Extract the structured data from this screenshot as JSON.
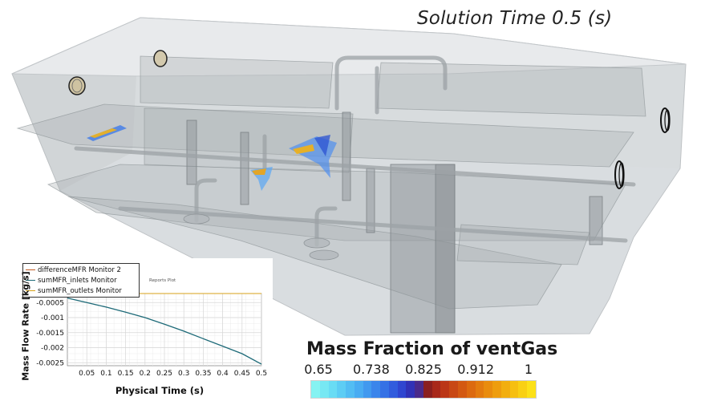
{
  "scene": {
    "solution_time_label": "Solution Time 0.5 (s)"
  },
  "colorbar": {
    "title": "Mass Fraction of ventGas",
    "ticks": [
      "0.65",
      "0.738",
      "0.825",
      "0.912",
      "1"
    ],
    "tick_values": [
      0.65,
      0.738,
      0.825,
      0.912,
      1.0
    ],
    "min": 0.65,
    "max": 1.0,
    "colors": [
      "#85f3f2",
      "#77e8f3",
      "#69dcf4",
      "#5dcdf4",
      "#52bdf3",
      "#49acf2",
      "#4199ef",
      "#3a85eb",
      "#3571e5",
      "#315cdd",
      "#2f46d0",
      "#3132b6",
      "#4a2a8a",
      "#8a1f1f",
      "#a8281a",
      "#bb3616",
      "#c84814",
      "#d35912",
      "#dc6a10",
      "#e37b0f",
      "#e98c0e",
      "#ee9d0e",
      "#f2ae0f",
      "#f6bf11",
      "#f9d014",
      "#fce119"
    ]
  },
  "plot": {
    "title": "Reports Plot",
    "legend": [
      {
        "label": "differenceMFR Monitor 2",
        "color": "#c25b23"
      },
      {
        "label": "sumMFR_inlets Monitor",
        "color": "#1d6a78"
      },
      {
        "label": "sumMFR_outlets Monitor",
        "color": "#d7a21a"
      }
    ]
  },
  "chart_data": {
    "type": "line",
    "title": "Reports Plot",
    "xlabel": "Physical Time (s)",
    "ylabel": "Mass Flow Rate [kg/s]",
    "xlim": [
      0.0,
      0.5
    ],
    "ylim": [
      -0.0026,
      -0.0002
    ],
    "x_ticks": [
      "0.05",
      "0.1",
      "0.15",
      "0.2",
      "0.25",
      "0.3",
      "0.35",
      "0.4",
      "0.45",
      "0.5"
    ],
    "x_tick_values": [
      0.05,
      0.1,
      0.15,
      0.2,
      0.25,
      0.3,
      0.35,
      0.4,
      0.45,
      0.5
    ],
    "y_ticks": [
      "-0.0005",
      "-0.001",
      "-0.0015",
      "-0.002",
      "-0.0025"
    ],
    "y_tick_values": [
      -0.0005,
      -0.001,
      -0.0015,
      -0.002,
      -0.0025
    ],
    "grid": true,
    "legend_position": "top-left",
    "series": [
      {
        "name": "differenceMFR Monitor 2",
        "color": "#c25b23",
        "x": [
          0.0,
          0.5
        ],
        "y": [
          -0.0002,
          -0.0002
        ]
      },
      {
        "name": "sumMFR_inlets Monitor",
        "color": "#1d6a78",
        "x": [
          0.0,
          0.05,
          0.1,
          0.15,
          0.2,
          0.25,
          0.3,
          0.35,
          0.4,
          0.45,
          0.5
        ],
        "y": [
          -0.00035,
          -0.0005,
          -0.00065,
          -0.00082,
          -0.001,
          -0.00122,
          -0.00145,
          -0.0017,
          -0.00195,
          -0.0022,
          -0.00255
        ]
      },
      {
        "name": "sumMFR_outlets Monitor",
        "color": "#d7a21a",
        "x": [
          0.0,
          0.5
        ],
        "y": [
          -0.0002,
          -0.0002
        ]
      }
    ]
  }
}
